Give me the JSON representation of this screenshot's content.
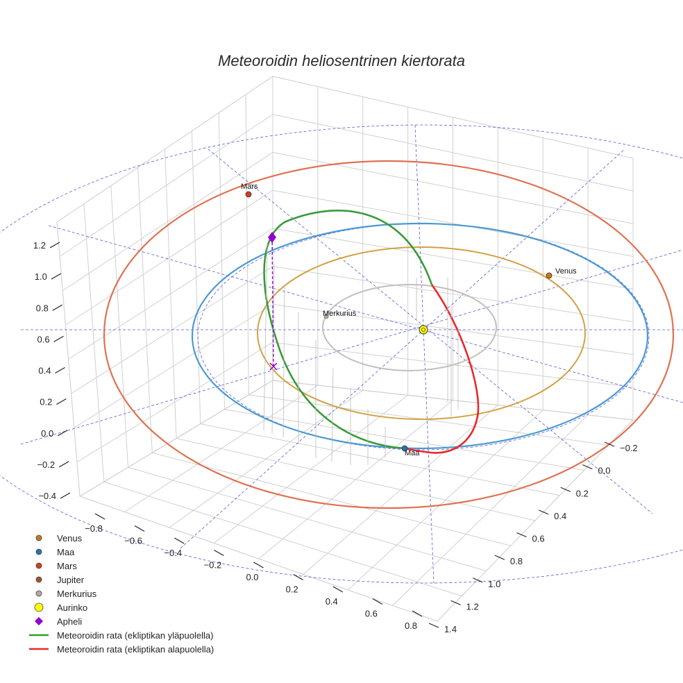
{
  "chart_data": {
    "type": "scatter",
    "title": "Meteoroidin heliosentrinen kiertorata",
    "x_ticks": [
      "−0.8",
      "−0.6",
      "−0.4",
      "−0.2",
      "0.0",
      "0.2",
      "0.4",
      "0.6",
      "0.8"
    ],
    "y_ticks": [
      "−0.2",
      "0.0",
      "0.2",
      "0.4",
      "0.6",
      "0.8",
      "1.0",
      "1.2",
      "1.4"
    ],
    "z_ticks": [
      "−0.4",
      "−0.2",
      "0.0",
      "0.2",
      "0.4",
      "0.6",
      "0.8",
      "1.0",
      "1.2"
    ],
    "grid": true,
    "legend_position": "bottom-left",
    "planet_labels": [
      "Mars",
      "Venus",
      "Merkurius",
      "Maa"
    ],
    "legend": [
      {
        "label": "Venus",
        "marker": "circle",
        "color": "#c47a1b"
      },
      {
        "label": "Maa",
        "marker": "circle",
        "color": "#1f77b4"
      },
      {
        "label": "Mars",
        "marker": "circle",
        "color": "#d2401f"
      },
      {
        "label": "Jupiter",
        "marker": "circle",
        "color": "#a0522d"
      },
      {
        "label": "Merkurius",
        "marker": "circle",
        "color": "#b8a8a0"
      },
      {
        "label": "Aurinko",
        "marker": "circle",
        "color": "#ffff00"
      },
      {
        "label": "Apheli",
        "marker": "diamond",
        "color": "#9400d3"
      },
      {
        "label": "Meteoroidin rata (ekliptikan yläpuolella)",
        "marker": "line",
        "color": "#2ca02c"
      },
      {
        "label": "Meteoroidin rata (ekliptikan alapuolella)",
        "marker": "line",
        "color": "#e8292b"
      }
    ],
    "orbit_colors": {
      "mars": "#e07050",
      "earth": "#4a9ad0",
      "venus": "#d4a040",
      "mercury": "#c4bebc",
      "above": "#3a9a3a",
      "below": "#e8292b",
      "ecliptic_grid": "#5555dd",
      "grid": "#d0d0d0"
    }
  }
}
